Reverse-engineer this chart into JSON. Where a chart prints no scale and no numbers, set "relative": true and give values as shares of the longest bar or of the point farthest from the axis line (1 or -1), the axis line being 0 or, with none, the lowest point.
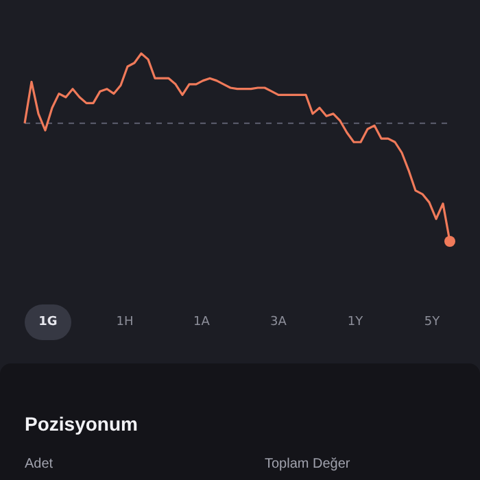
{
  "chart_data": {
    "type": "line",
    "relative": true,
    "categories": [
      null,
      null,
      null,
      null,
      null,
      null,
      null,
      null,
      null,
      null,
      null,
      null,
      null,
      null,
      null,
      null,
      null,
      null,
      null,
      null,
      null,
      null,
      null,
      null,
      null,
      null,
      null,
      null,
      null,
      null,
      null,
      null,
      null,
      null,
      null,
      null,
      null,
      null,
      null,
      null,
      null,
      null,
      null,
      null,
      null,
      null,
      null,
      null,
      null,
      null,
      null,
      null,
      null,
      null,
      null,
      null,
      null,
      null,
      null,
      null,
      null,
      null,
      null
    ],
    "series": [
      {
        "color": "#f07a5a",
        "values": [
          0.0,
          0.35,
          0.08,
          -0.06,
          0.13,
          0.25,
          0.22,
          0.29,
          0.22,
          0.17,
          0.17,
          0.27,
          0.29,
          0.25,
          0.32,
          0.48,
          0.51,
          0.59,
          0.54,
          0.38,
          0.38,
          0.38,
          0.33,
          0.24,
          0.33,
          0.33,
          0.36,
          0.38,
          0.36,
          0.33,
          0.3,
          0.29,
          0.29,
          0.29,
          0.3,
          0.3,
          0.27,
          0.24,
          0.24,
          0.24,
          0.24,
          0.24,
          0.08,
          0.13,
          0.06,
          0.08,
          0.02,
          -0.08,
          -0.16,
          -0.16,
          -0.05,
          -0.02,
          -0.13,
          -0.13,
          -0.16,
          -0.25,
          -0.4,
          -0.57,
          -0.6,
          -0.67,
          -0.81,
          -0.68,
          -1
        ]
      }
    ],
    "ref_lines": [
      {
        "axis": "y",
        "value": 0,
        "color": "#5d6070",
        "line_style": "dashed"
      }
    ],
    "line_style": "solid",
    "legend": false,
    "annotations": [
      "1G",
      "1H",
      "1A",
      "3A",
      "1Y",
      "5Y",
      "Pozisyonum",
      "Adet",
      "Toplam Değer"
    ]
  }
}
